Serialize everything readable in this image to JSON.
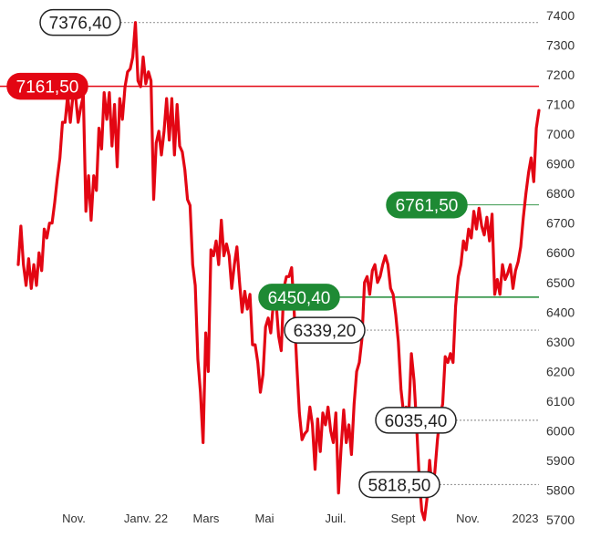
{
  "chart_data": {
    "type": "line",
    "title": "",
    "xlabel": "",
    "ylabel": "",
    "ylim": [
      5700,
      7400
    ],
    "yticks": [
      "5700",
      "5800",
      "5900",
      "6000",
      "6100",
      "6200",
      "6300",
      "6400",
      "6500",
      "6600",
      "6700",
      "6800",
      "6900",
      "7000",
      "7100",
      "7200",
      "7300",
      "7400"
    ],
    "xticks": [
      "Nov.",
      "Janv. 22",
      "Mars",
      "Mai",
      "Juil.",
      "Sept",
      "Nov.",
      "2023"
    ],
    "grid": false,
    "colors": {
      "line": "#e30613",
      "green": "#1e8a34",
      "black": "#222222",
      "axis_text": "#333333",
      "dotted": "#9a9a9a"
    },
    "series": [
      {
        "values": [
          6560,
          6690,
          6560,
          6490,
          6580,
          6480,
          6560,
          6490,
          6600,
          6540,
          6680,
          6650,
          6700,
          6700,
          6770,
          6850,
          6920,
          7040,
          7040,
          7130,
          7040,
          7130,
          7130,
          7040,
          7090,
          7130,
          6740,
          6860,
          6710,
          6860,
          6810,
          7020,
          6950,
          7140,
          7050,
          7140,
          6960,
          7100,
          6890,
          7120,
          7050,
          7160,
          7210,
          7220,
          7260,
          7376.4,
          7180,
          7160,
          7260,
          7170,
          7210,
          7180,
          6780,
          6970,
          7010,
          6930,
          7010,
          7120,
          6980,
          7120,
          6930,
          7100,
          6960,
          6940,
          6880,
          6780,
          6760,
          6560,
          6490,
          6240,
          6130,
          5960,
          6330,
          6200,
          6610,
          6590,
          6640,
          6560,
          6710,
          6590,
          6630,
          6590,
          6480,
          6560,
          6620,
          6500,
          6400,
          6470,
          6410,
          6460,
          6290,
          6290,
          6230,
          6130,
          6190,
          6350,
          6380,
          6330,
          6430,
          6440,
          6320,
          6270,
          6480,
          6520,
          6520,
          6550,
          6400,
          6220,
          6060,
          5970,
          5990,
          6000,
          6080,
          6020,
          5870,
          6040,
          5930,
          6060,
          6020,
          6080,
          6000,
          5960,
          6060,
          5790,
          5940,
          6070,
          5960,
          6020,
          5920,
          6090,
          6200,
          6230,
          6310,
          6500,
          6520,
          6460,
          6540,
          6560,
          6500,
          6520,
          6560,
          6590,
          6560,
          6480,
          6460,
          6390,
          6300,
          6140,
          6060,
          6080,
          6060,
          6260,
          6170,
          6020,
          5840,
          5730,
          5700,
          5770,
          5900,
          5800,
          5860,
          5970,
          6050,
          6090,
          6250,
          6230,
          6260,
          6230,
          6420,
          6520,
          6560,
          6640,
          6610,
          6680,
          6650,
          6740,
          6680,
          6750,
          6690,
          6660,
          6720,
          6640,
          6730,
          6460,
          6510,
          6460,
          6560,
          6510,
          6530,
          6560,
          6480,
          6540,
          6570,
          6620,
          6720,
          6800,
          6870,
          6920,
          6840,
          7020,
          7080
        ]
      }
    ],
    "annotations": [
      {
        "label": "7376,40",
        "value": 7376.4,
        "style": "white",
        "line": "dotted"
      },
      {
        "label": "7161,50",
        "value": 7161.5,
        "style": "red",
        "line": "solid"
      },
      {
        "label": "6761,50",
        "value": 6761.5,
        "style": "green",
        "line": "thin"
      },
      {
        "label": "6450,40",
        "value": 6450.4,
        "style": "green",
        "line": "solid"
      },
      {
        "label": "6339,20",
        "value": 6339.2,
        "style": "white",
        "line": "dotted"
      },
      {
        "label": "6035,40",
        "value": 6035.4,
        "style": "white",
        "line": "dotted"
      },
      {
        "label": "5818,50",
        "value": 5818.5,
        "style": "white",
        "line": "dotted"
      }
    ]
  }
}
